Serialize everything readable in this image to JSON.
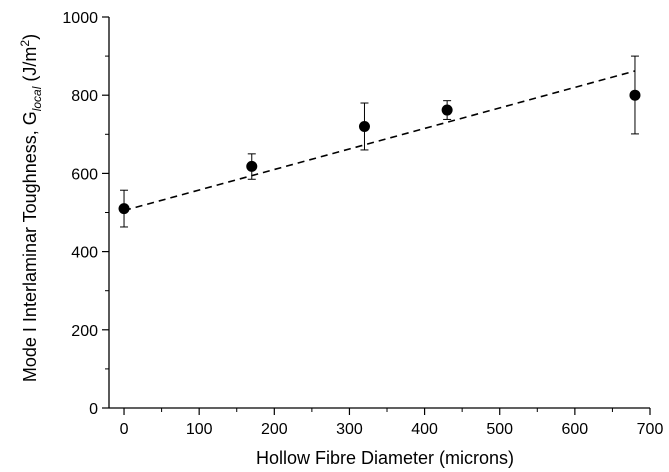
{
  "chart_data": {
    "type": "scatter",
    "xlabel": "Hollow Fibre Diameter (microns)",
    "ylabel": {
      "prefix": "Mode I Interlaminar Toughness, G",
      "subscript": "local",
      "unit_open": " (J/m",
      "superscript": "2",
      "unit_close": ")"
    },
    "xlim": [
      -20,
      700
    ],
    "ylim": [
      0,
      1000
    ],
    "x_ticks": [
      0,
      100,
      200,
      300,
      400,
      500,
      600,
      700
    ],
    "y_ticks": [
      0,
      200,
      400,
      600,
      800,
      1000
    ],
    "grid": false,
    "points": [
      {
        "x": 0,
        "y": 510,
        "err_low": 463,
        "err_high": 557
      },
      {
        "x": 170,
        "y": 618,
        "err_low": 585,
        "err_high": 650
      },
      {
        "x": 320,
        "y": 720,
        "err_low": 660,
        "err_high": 780
      },
      {
        "x": 430,
        "y": 762,
        "err_low": 738,
        "err_high": 786
      },
      {
        "x": 680,
        "y": 800,
        "err_low": 701,
        "err_high": 900
      }
    ],
    "trendline": {
      "style": "dashed",
      "x": [
        0,
        680
      ],
      "y": [
        505,
        862
      ]
    },
    "marker_color": "#000000"
  }
}
